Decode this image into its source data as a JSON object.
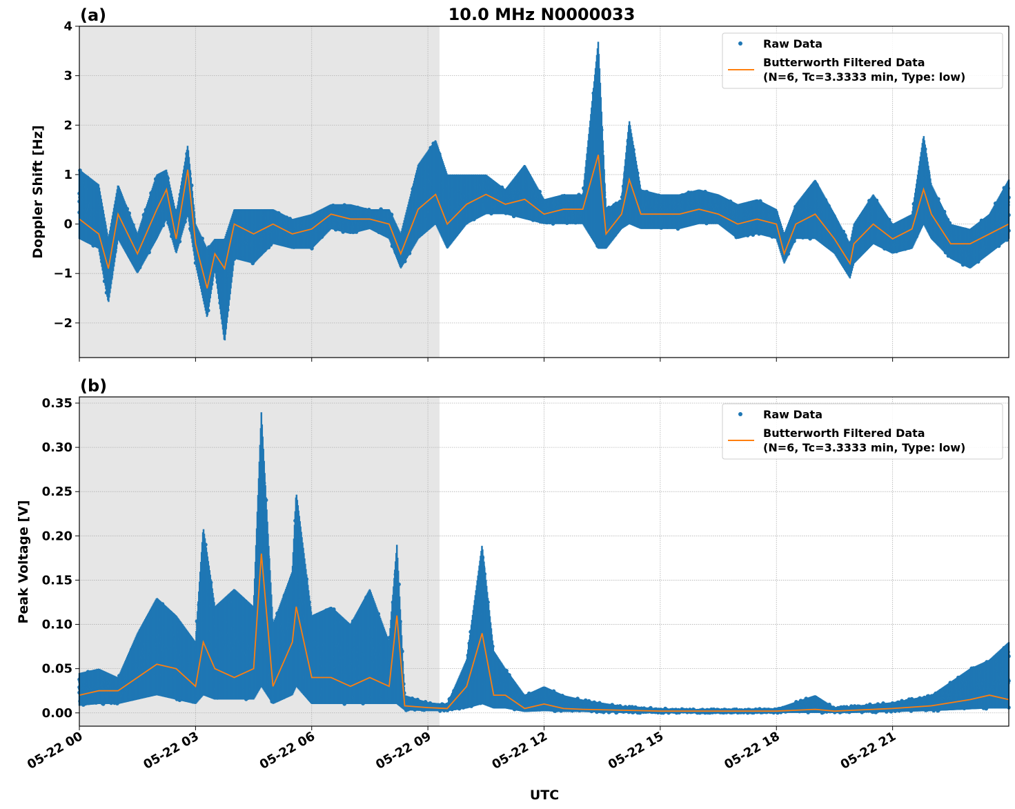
{
  "title": "10.0 MHz N0000033",
  "colors": {
    "raw": "#1f77b4",
    "filtered": "#ff7f0e",
    "shaded_region": "#e6e6e6"
  },
  "chart_data": [
    {
      "type": "scatter+line",
      "panel_label": "(a)",
      "xlabel": "",
      "ylabel": "Doppler Shift [Hz]",
      "x_unit": "hours UTC on 05-22",
      "xlim": [
        0,
        24
      ],
      "ylim": [
        -2.7,
        4.0
      ],
      "yticks": [
        -2,
        -1,
        0,
        1,
        2,
        3,
        4
      ],
      "ytick_labels": [
        "−2",
        "−1",
        "0",
        "1",
        "2",
        "3",
        "4"
      ],
      "grid": true,
      "shaded_span": [
        0,
        9.3
      ],
      "legend": {
        "placement": "top-right",
        "entries": [
          "Raw Data",
          "Butterworth Filtered Data",
          "(N=6, Tc=3.3333 min, Type: low)"
        ]
      },
      "x": [
        0,
        0.5,
        0.75,
        1,
        1.5,
        2,
        2.25,
        2.5,
        2.8,
        3,
        3.3,
        3.5,
        3.75,
        4,
        4.5,
        5,
        5.5,
        6,
        6.5,
        7,
        7.5,
        8,
        8.3,
        8.75,
        9.2,
        9.5,
        10,
        10.5,
        11,
        11.5,
        12,
        12.5,
        13,
        13.4,
        13.6,
        14,
        14.2,
        14.5,
        15,
        15.5,
        16,
        16.5,
        17,
        17.5,
        18,
        18.2,
        18.5,
        19,
        19.5,
        19.9,
        20,
        20.5,
        21,
        21.5,
        21.8,
        22,
        22.5,
        23,
        23.5,
        24
      ],
      "series": [
        {
          "name": "Butterworth Filtered Data",
          "kind": "line",
          "values": [
            0.1,
            -0.2,
            -0.9,
            0.2,
            -0.6,
            0.3,
            0.7,
            -0.3,
            1.1,
            -0.4,
            -1.3,
            -0.6,
            -0.9,
            0.0,
            -0.2,
            0.0,
            -0.2,
            -0.1,
            0.2,
            0.1,
            0.1,
            0.0,
            -0.6,
            0.3,
            0.6,
            0.0,
            0.4,
            0.6,
            0.4,
            0.5,
            0.2,
            0.3,
            0.3,
            1.4,
            -0.2,
            0.2,
            0.9,
            0.2,
            0.2,
            0.2,
            0.3,
            0.2,
            0.0,
            0.1,
            0.0,
            -0.6,
            0.0,
            0.2,
            -0.3,
            -0.8,
            -0.4,
            0.0,
            -0.3,
            -0.1,
            0.7,
            0.2,
            -0.4,
            -0.4,
            -0.2,
            0.0
          ]
        },
        {
          "name": "Raw Data",
          "kind": "scatter-envelope",
          "low": [
            -0.3,
            -0.5,
            -1.6,
            -0.3,
            -1.0,
            -0.3,
            0.1,
            -0.6,
            0.2,
            -0.8,
            -1.9,
            -0.9,
            -2.4,
            -0.7,
            -0.8,
            -0.4,
            -0.5,
            -0.5,
            -0.1,
            -0.2,
            -0.1,
            -0.3,
            -0.9,
            -0.3,
            0.0,
            -0.5,
            0.0,
            0.2,
            0.2,
            0.1,
            0.0,
            0.0,
            0.0,
            -0.5,
            -0.5,
            -0.1,
            0.0,
            -0.1,
            -0.1,
            -0.1,
            0.0,
            0.0,
            -0.3,
            -0.2,
            -0.3,
            -0.8,
            -0.3,
            -0.3,
            -0.6,
            -1.1,
            -0.8,
            -0.4,
            -0.6,
            -0.5,
            0.0,
            -0.3,
            -0.7,
            -0.9,
            -0.6,
            -0.3
          ],
          "high": [
            1.1,
            0.8,
            -0.3,
            0.8,
            -0.2,
            1.0,
            1.1,
            0.2,
            1.6,
            0.0,
            -0.5,
            -0.3,
            -0.3,
            0.3,
            0.3,
            0.3,
            0.1,
            0.2,
            0.4,
            0.4,
            0.3,
            0.3,
            -0.2,
            1.2,
            1.7,
            1.0,
            1.0,
            1.0,
            0.7,
            1.2,
            0.5,
            0.6,
            0.6,
            3.7,
            0.3,
            0.5,
            2.1,
            0.7,
            0.6,
            0.6,
            0.7,
            0.6,
            0.4,
            0.5,
            0.3,
            -0.2,
            0.4,
            0.9,
            0.2,
            -0.4,
            0.0,
            0.6,
            0.0,
            0.2,
            1.8,
            0.8,
            0.0,
            -0.1,
            0.2,
            0.9
          ]
        }
      ]
    },
    {
      "type": "scatter+line",
      "panel_label": "(b)",
      "xlabel": "UTC",
      "ylabel": "Peak Voltage [V]",
      "x_unit": "hours UTC on 05-22",
      "xlim": [
        0,
        24
      ],
      "ylim": [
        -0.015,
        0.357
      ],
      "yticks": [
        0,
        0.05,
        0.1,
        0.15,
        0.2,
        0.25,
        0.3,
        0.35
      ],
      "ytick_labels": [
        "0.00",
        "0.05",
        "0.10",
        "0.15",
        "0.20",
        "0.25",
        "0.30",
        "0.35"
      ],
      "xticks": [
        0,
        3,
        6,
        9,
        12,
        15,
        18,
        21
      ],
      "xtick_labels": [
        "05-22 00",
        "05-22 03",
        "05-22 06",
        "05-22 09",
        "05-22 12",
        "05-22 15",
        "05-22 18",
        "05-22 21"
      ],
      "grid": true,
      "shaded_span": [
        0,
        9.3
      ],
      "legend": {
        "placement": "top-right",
        "entries": [
          "Raw Data",
          "Butterworth Filtered Data",
          "(N=6, Tc=3.3333 min, Type: low)"
        ]
      },
      "x": [
        0,
        0.5,
        1,
        1.5,
        2,
        2.5,
        3,
        3.2,
        3.5,
        4,
        4.5,
        4.7,
        5,
        5.5,
        5.6,
        6,
        6.5,
        7,
        7.5,
        8,
        8.2,
        8.4,
        9,
        9.5,
        10,
        10.4,
        10.7,
        11,
        11.5,
        12,
        12.5,
        13,
        14,
        15,
        16,
        17,
        18,
        19,
        19.5,
        20,
        21,
        22,
        23,
        23.5,
        24
      ],
      "series": [
        {
          "name": "Butterworth Filtered Data",
          "kind": "line",
          "values": [
            0.02,
            0.025,
            0.025,
            0.04,
            0.055,
            0.05,
            0.03,
            0.08,
            0.05,
            0.04,
            0.05,
            0.18,
            0.03,
            0.08,
            0.12,
            0.04,
            0.04,
            0.03,
            0.04,
            0.03,
            0.11,
            0.008,
            0.006,
            0.005,
            0.03,
            0.09,
            0.02,
            0.02,
            0.005,
            0.01,
            0.005,
            0.004,
            0.003,
            0.002,
            0.002,
            0.002,
            0.002,
            0.004,
            0.002,
            0.003,
            0.005,
            0.008,
            0.015,
            0.02,
            0.015
          ]
        },
        {
          "name": "Raw Data",
          "kind": "scatter-envelope",
          "low": [
            0.008,
            0.01,
            0.01,
            0.015,
            0.02,
            0.015,
            0.01,
            0.02,
            0.015,
            0.015,
            0.015,
            0.03,
            0.01,
            0.02,
            0.03,
            0.01,
            0.01,
            0.01,
            0.01,
            0.01,
            0.01,
            0.003,
            0.002,
            0.002,
            0.005,
            0.01,
            0.005,
            0.005,
            0.001,
            0.002,
            0.001,
            0.001,
            0,
            0,
            0,
            0,
            0,
            0,
            0,
            0,
            0.001,
            0.002,
            0.004,
            0.005,
            0.005
          ],
          "high": [
            0.045,
            0.05,
            0.04,
            0.09,
            0.13,
            0.11,
            0.08,
            0.21,
            0.12,
            0.14,
            0.12,
            0.34,
            0.1,
            0.16,
            0.25,
            0.11,
            0.12,
            0.1,
            0.14,
            0.08,
            0.19,
            0.02,
            0.012,
            0.01,
            0.06,
            0.19,
            0.07,
            0.05,
            0.02,
            0.03,
            0.02,
            0.015,
            0.008,
            0.005,
            0.004,
            0.004,
            0.005,
            0.02,
            0.006,
            0.008,
            0.012,
            0.02,
            0.05,
            0.06,
            0.08
          ]
        }
      ]
    }
  ]
}
